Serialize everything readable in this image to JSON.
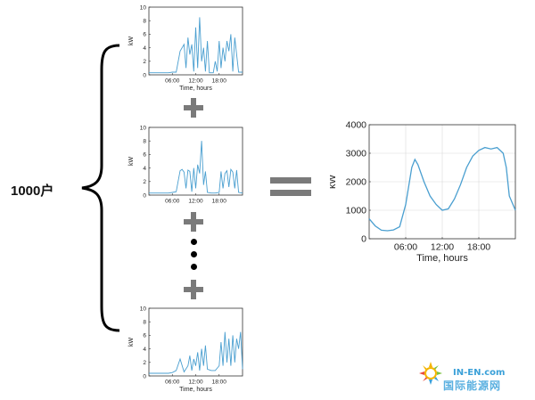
{
  "household_label": "1000户",
  "colors": {
    "trace": "#4a9fd0",
    "operator_grey": "#7a7a7a",
    "axis": "#333333",
    "grid": "#d9d9d9"
  },
  "small_charts": [
    {
      "ylabel": "kW",
      "xlabel": "Time, hours",
      "yticks": [
        "0",
        "2",
        "4",
        "6",
        "8",
        "10"
      ],
      "xticks": [
        "06:00",
        "12:00",
        "18:00"
      ],
      "chart_data": {
        "type": "line",
        "ylim": [
          0,
          10
        ],
        "x": [
          0,
          1,
          2,
          3,
          4,
          5,
          6,
          7,
          8,
          9,
          9.5,
          10,
          10.5,
          11,
          11.5,
          12,
          12.5,
          13,
          13.5,
          14,
          14.5,
          15,
          15.5,
          16,
          16.5,
          17,
          17.5,
          18,
          18.5,
          19,
          19.5,
          20,
          20.5,
          21,
          21.5,
          22,
          22.5,
          23,
          24
        ],
        "y": [
          0.3,
          0.3,
          0.3,
          0.3,
          0.3,
          0.3,
          0.4,
          0.4,
          3.5,
          4.5,
          1,
          5.5,
          3,
          4.5,
          0.5,
          7,
          1,
          8.5,
          2,
          4,
          0.5,
          5,
          0.3,
          0.3,
          0.3,
          2,
          0.5,
          5,
          1,
          4,
          2,
          5,
          3.5,
          6,
          0.5,
          5.5,
          3,
          0.4,
          0.4
        ]
      }
    },
    {
      "ylabel": "kW",
      "xlabel": "",
      "yticks": [
        "0",
        "2",
        "4",
        "6",
        "8",
        "10"
      ],
      "xticks": [
        "06:00",
        "12:00",
        "18:00"
      ],
      "chart_data": {
        "type": "line",
        "ylim": [
          0,
          10
        ],
        "x": [
          0,
          1,
          2,
          3,
          4,
          5,
          6,
          7,
          8,
          8.5,
          9,
          9.5,
          10,
          10.5,
          11,
          11.5,
          12,
          12.5,
          13,
          13.5,
          14,
          14.5,
          15,
          16,
          17,
          18,
          18.5,
          19,
          19.5,
          20,
          20.5,
          21,
          21.5,
          22,
          22.5,
          23,
          24
        ],
        "y": [
          0.3,
          0.3,
          0.3,
          0.3,
          0.3,
          0.3,
          0.4,
          0.5,
          3.6,
          3.8,
          3.4,
          1,
          3.7,
          3.5,
          0.5,
          4,
          1,
          4.5,
          3.2,
          8,
          1.5,
          3.5,
          0.4,
          0.3,
          0.3,
          0.4,
          3.5,
          1,
          3.2,
          3.6,
          1.2,
          3.8,
          3.4,
          1,
          3.7,
          0.4,
          0.3
        ]
      }
    },
    {
      "ylabel": "kW",
      "xlabel": "Time, hours",
      "yticks": [
        "0",
        "2",
        "4",
        "6",
        "8",
        "10"
      ],
      "xticks": [
        "06:00",
        "12:00",
        "18:00"
      ],
      "chart_data": {
        "type": "line",
        "ylim": [
          0,
          10
        ],
        "x": [
          0,
          1,
          2,
          3,
          4,
          5,
          6,
          7,
          8,
          9,
          10,
          10.5,
          11,
          11.5,
          12,
          12.5,
          13,
          13.5,
          14,
          14.5,
          15,
          16,
          17,
          18,
          18.5,
          19,
          19.5,
          20,
          20.5,
          21,
          21.5,
          22,
          22.5,
          23,
          23.5,
          24
        ],
        "y": [
          0.4,
          0.4,
          0.4,
          0.4,
          0.4,
          0.4,
          0.5,
          0.8,
          2.5,
          0.6,
          1.5,
          3,
          0.8,
          2.5,
          1.5,
          3.5,
          0.8,
          4,
          1.5,
          4.5,
          1,
          0.8,
          0.8,
          1.5,
          5,
          1.5,
          6.5,
          2,
          5.5,
          1.5,
          6,
          2,
          5.5,
          4,
          6.5,
          1
        ]
      }
    }
  ],
  "aggregate_chart": {
    "ylabel": "kW",
    "xlabel": "Time, hours",
    "yticks": [
      "0",
      "1000",
      "2000",
      "3000",
      "4000"
    ],
    "xticks": [
      "06:00",
      "12:00",
      "18:00"
    ],
    "chart_data": {
      "type": "line",
      "ylim": [
        0,
        4000
      ],
      "xlim": [
        0,
        24
      ],
      "x": [
        0,
        1,
        2,
        3,
        4,
        5,
        6,
        7,
        7.5,
        8,
        9,
        10,
        11,
        12,
        13,
        14,
        15,
        16,
        17,
        18,
        19,
        20,
        21,
        22,
        22.5,
        23,
        24
      ],
      "y": [
        700,
        450,
        300,
        280,
        310,
        420,
        1200,
        2500,
        2780,
        2600,
        2000,
        1500,
        1200,
        1000,
        1050,
        1400,
        1900,
        2500,
        2900,
        3100,
        3200,
        3150,
        3200,
        3000,
        2500,
        1500,
        1000
      ]
    }
  },
  "watermark": {
    "brand": "IN-EN.com",
    "name": "国际能源网"
  }
}
